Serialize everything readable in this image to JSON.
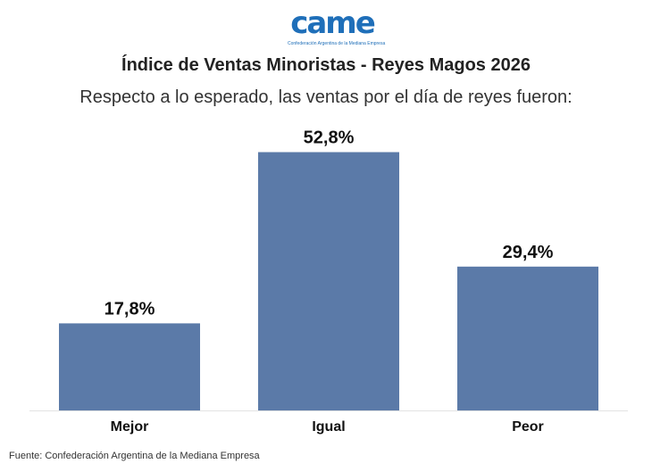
{
  "logo": {
    "word": "came",
    "subtitle": "Confederación Argentina de la Mediana Empresa"
  },
  "chart_data": {
    "type": "bar",
    "title": "Índice de Ventas Minoristas - Reyes Magos 2026",
    "subtitle": "Respecto a lo esperado, las ventas por el día de reyes fueron:",
    "categories": [
      "Mejor",
      "Igual",
      "Peor"
    ],
    "values": [
      17.8,
      52.8,
      29.4
    ],
    "data_labels": [
      "17,8%",
      "52,8%",
      "29,4%"
    ],
    "unit": "%",
    "ylim": [
      0,
      58
    ],
    "grid": false,
    "bar_color": "#5b7aa8"
  },
  "source": "Fuente: Confederación Argentina de la Mediana Empresa"
}
